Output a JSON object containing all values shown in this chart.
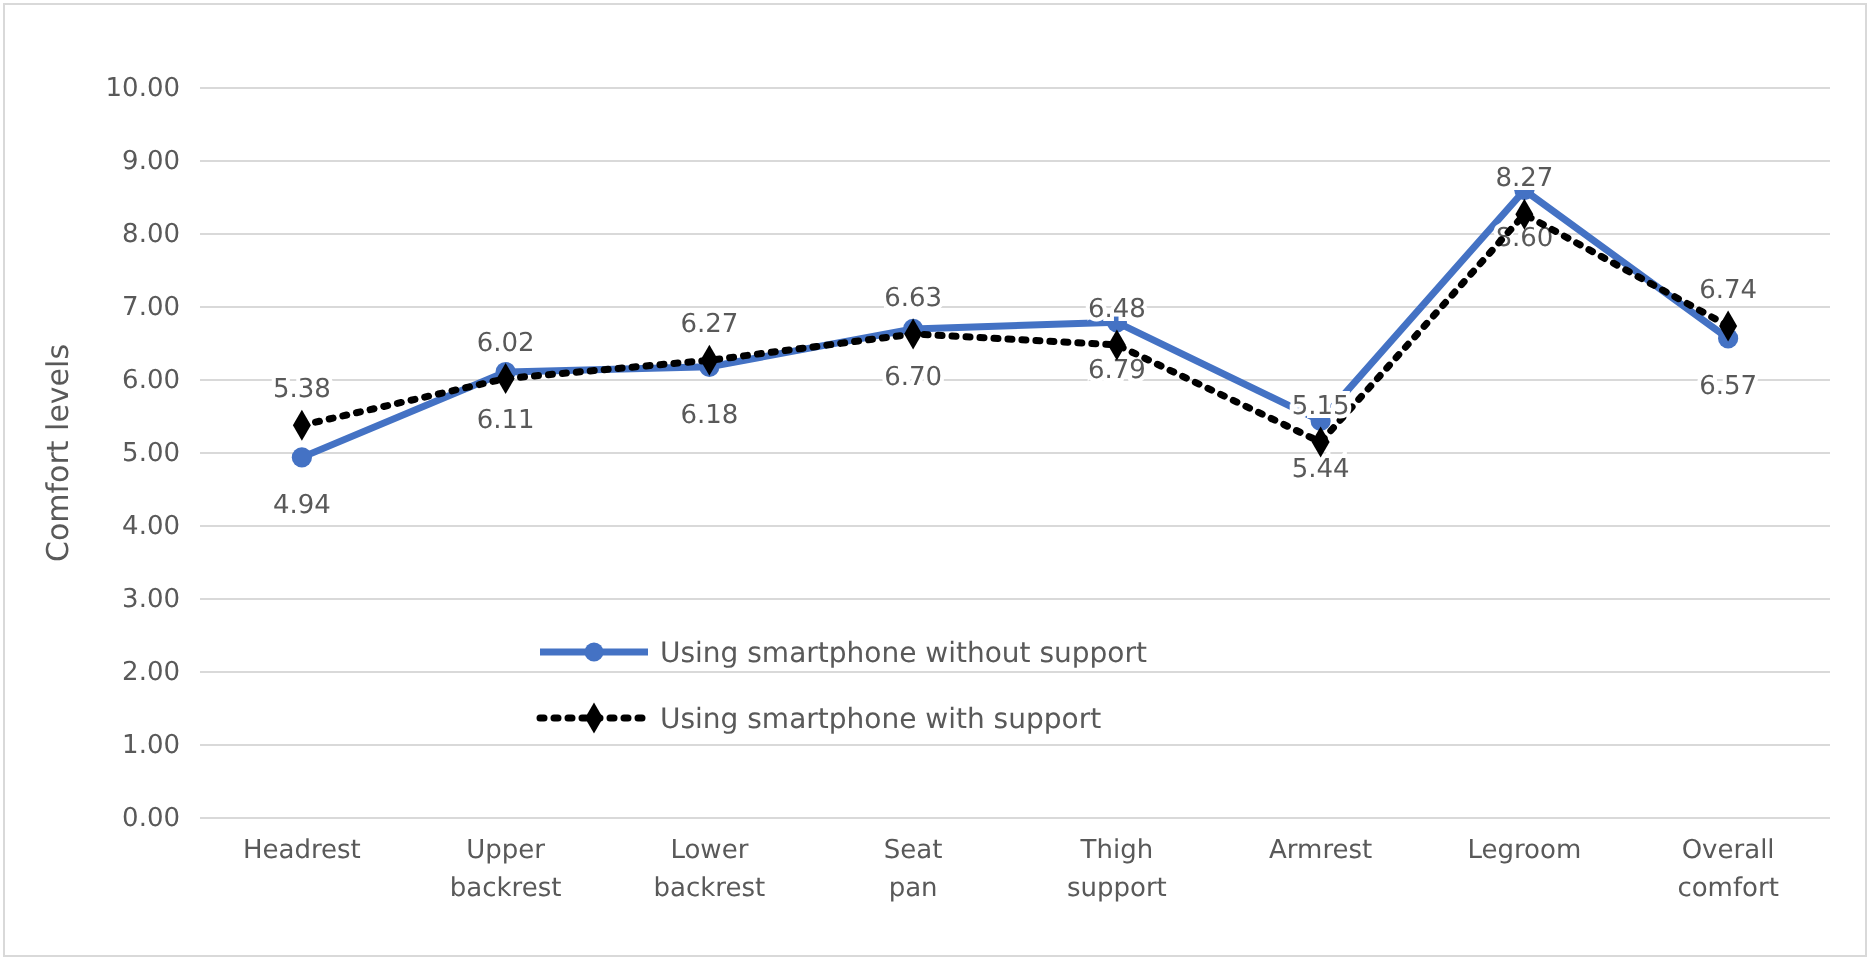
{
  "chart_data": {
    "type": "line",
    "ylabel": "Comfort levels",
    "categories": [
      "Headrest",
      "Upper backrest",
      "Lower backrest",
      "Seat pan",
      "Thigh support",
      "Armrest",
      "Legroom",
      "Overall comfort"
    ],
    "series": [
      {
        "name": "Using smartphone without support",
        "color": "#4472c4",
        "marker": "circle",
        "line_style": "solid",
        "values": [
          4.94,
          6.11,
          6.18,
          6.7,
          6.79,
          5.44,
          8.6,
          6.57
        ],
        "value_labels": [
          "4.94",
          "6.11",
          "6.18",
          "6.70",
          "6.79",
          "5.44",
          "8.60",
          "6.57"
        ]
      },
      {
        "name": "Using smartphone with support",
        "color": "#000000",
        "marker": "diamond",
        "line_style": "dotted",
        "values": [
          5.38,
          6.02,
          6.27,
          6.63,
          6.48,
          5.15,
          8.27,
          6.74
        ],
        "value_labels": [
          "5.38",
          "6.02",
          "6.27",
          "6.63",
          "6.48",
          "5.15",
          "8.27",
          "6.74"
        ]
      }
    ],
    "ylim": [
      0,
      10
    ],
    "yticks": [
      {
        "value": 0,
        "label": "0.00"
      },
      {
        "value": 1,
        "label": "1.00"
      },
      {
        "value": 2,
        "label": "2.00"
      },
      {
        "value": 3,
        "label": "3.00"
      },
      {
        "value": 4,
        "label": "4.00"
      },
      {
        "value": 5,
        "label": "5.00"
      },
      {
        "value": 6,
        "label": "6.00"
      },
      {
        "value": 7,
        "label": "7.00"
      },
      {
        "value": 8,
        "label": "8.00"
      },
      {
        "value": 9,
        "label": "9.00"
      },
      {
        "value": 10,
        "label": "10.00"
      }
    ],
    "grid": "y",
    "legend": "bottom"
  }
}
